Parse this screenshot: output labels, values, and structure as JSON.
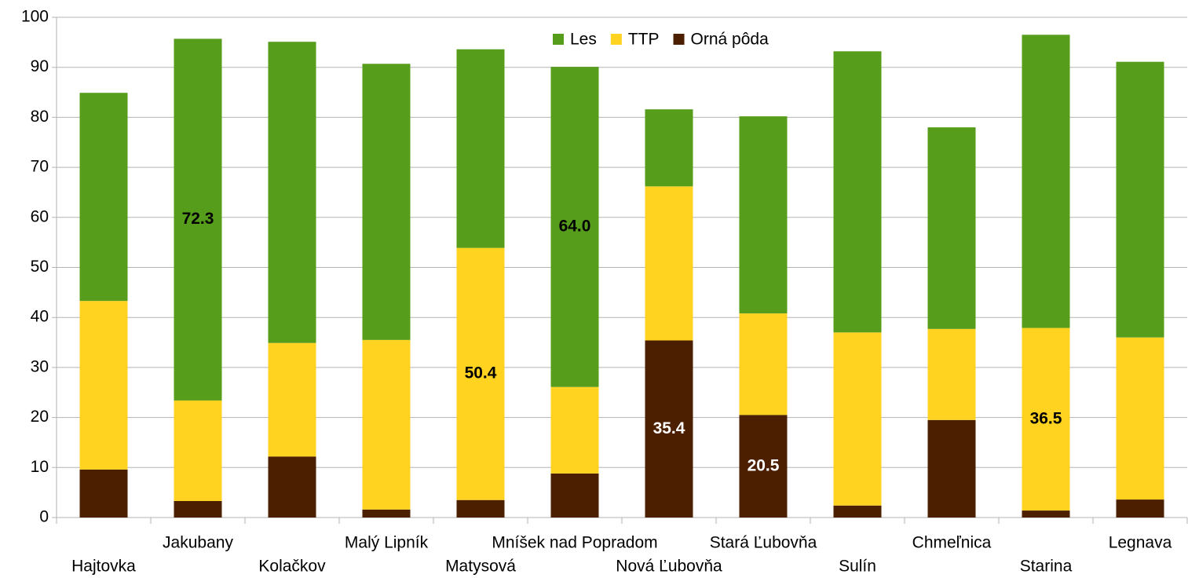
{
  "chart_data": {
    "type": "stacked_bar",
    "categories": [
      "Hajtovka",
      "Jakubany",
      "Kolačkov",
      "Malý Lipník",
      "Matysová",
      "Mníšek nad Popradom",
      "Nová Ľubovňa",
      "Stará Ľubovňa",
      "Sulín",
      "Chmeľnica",
      "Starina",
      "Legnava"
    ],
    "series": [
      {
        "name": "Les",
        "color": "#579d1c",
        "label_color": "#000000",
        "values": [
          41.6,
          72.3,
          60.2,
          55.2,
          39.7,
          64.0,
          15.4,
          39.4,
          56.2,
          40.3,
          58.6,
          55.1
        ],
        "value_labels": [
          null,
          "72.3",
          null,
          null,
          null,
          "64.0",
          null,
          null,
          null,
          null,
          null,
          null
        ]
      },
      {
        "name": "TTP",
        "color": "#ffd320",
        "label_color": "#000000",
        "values": [
          33.7,
          20.1,
          22.7,
          33.9,
          50.4,
          17.3,
          30.8,
          20.3,
          34.6,
          18.2,
          36.5,
          32.4
        ],
        "value_labels": [
          null,
          null,
          null,
          null,
          "50.4",
          null,
          null,
          null,
          null,
          null,
          "36.5",
          null
        ]
      },
      {
        "name": "Orná pôda",
        "color": "#4b1f00",
        "label_color": "#ffffff",
        "values": [
          9.6,
          3.3,
          12.2,
          1.6,
          3.5,
          8.8,
          35.4,
          20.5,
          2.4,
          19.5,
          1.4,
          3.6
        ],
        "value_labels": [
          null,
          null,
          null,
          null,
          null,
          null,
          "35.4",
          "20.5",
          null,
          null,
          null,
          null
        ]
      }
    ],
    "ylim": [
      0,
      100
    ],
    "yticks": [
      0,
      10,
      20,
      30,
      40,
      50,
      60,
      70,
      80,
      90,
      100
    ],
    "grid": true,
    "legend": "top"
  }
}
